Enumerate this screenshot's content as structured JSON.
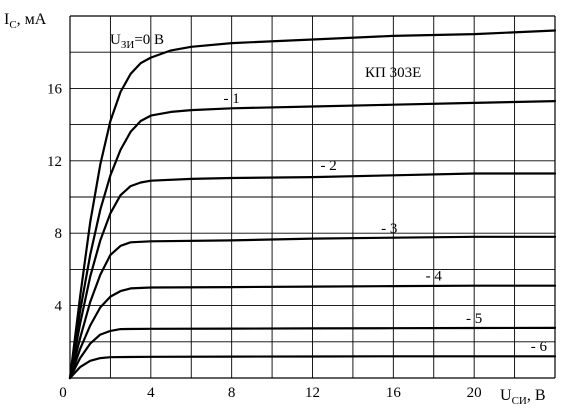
{
  "chart_data": {
    "type": "line",
    "title": "",
    "device_label": "КП 303Е",
    "ylabel": {
      "main": "I",
      "sub": "C",
      "unit": ", мА"
    },
    "xlabel": {
      "main": "U",
      "sub": "СИ",
      "unit": ", В"
    },
    "xlim": [
      0,
      24
    ],
    "ylim": [
      0,
      20
    ],
    "grid": true,
    "x_ticks": [
      0,
      4,
      8,
      12,
      16,
      20
    ],
    "y_ticks": [
      4,
      8,
      12,
      16
    ],
    "gate_label_prefix": {
      "main": "U",
      "sub": "ЗИ",
      "rest": "=0 В"
    },
    "series": [
      {
        "label": "",
        "points": [
          [
            0,
            0
          ],
          [
            0.5,
            4.5
          ],
          [
            1,
            8.6
          ],
          [
            1.5,
            11.8
          ],
          [
            2,
            14.2
          ],
          [
            2.5,
            15.8
          ],
          [
            3,
            16.8
          ],
          [
            3.5,
            17.4
          ],
          [
            4,
            17.7
          ],
          [
            5,
            18.1
          ],
          [
            6,
            18.3
          ],
          [
            8,
            18.5
          ],
          [
            12,
            18.7
          ],
          [
            16,
            18.9
          ],
          [
            20,
            19.0
          ],
          [
            24,
            19.2
          ]
        ]
      },
      {
        "label": "- 1",
        "points": [
          [
            0,
            0
          ],
          [
            0.5,
            3.7
          ],
          [
            1,
            6.8
          ],
          [
            1.5,
            9.3
          ],
          [
            2,
            11.2
          ],
          [
            2.5,
            12.6
          ],
          [
            3,
            13.6
          ],
          [
            3.5,
            14.2
          ],
          [
            4,
            14.5
          ],
          [
            5,
            14.7
          ],
          [
            6,
            14.8
          ],
          [
            8,
            14.9
          ],
          [
            12,
            15.0
          ],
          [
            16,
            15.1
          ],
          [
            20,
            15.2
          ],
          [
            24,
            15.3
          ]
        ]
      },
      {
        "label": "- 2",
        "points": [
          [
            0,
            0
          ],
          [
            0.5,
            3.0
          ],
          [
            1,
            5.6
          ],
          [
            1.5,
            7.6
          ],
          [
            2,
            9.1
          ],
          [
            2.5,
            10.1
          ],
          [
            3,
            10.6
          ],
          [
            3.5,
            10.8
          ],
          [
            4,
            10.9
          ],
          [
            6,
            11.0
          ],
          [
            8,
            11.05
          ],
          [
            12,
            11.1
          ],
          [
            16,
            11.2
          ],
          [
            20,
            11.3
          ],
          [
            24,
            11.3
          ]
        ]
      },
      {
        "label": "- 3",
        "points": [
          [
            0,
            0
          ],
          [
            0.5,
            2.2
          ],
          [
            1,
            4.2
          ],
          [
            1.5,
            5.7
          ],
          [
            2,
            6.8
          ],
          [
            2.5,
            7.3
          ],
          [
            3,
            7.5
          ],
          [
            4,
            7.55
          ],
          [
            8,
            7.6
          ],
          [
            12,
            7.7
          ],
          [
            16,
            7.75
          ],
          [
            20,
            7.8
          ],
          [
            24,
            7.8
          ]
        ]
      },
      {
        "label": "- 4",
        "points": [
          [
            0,
            0
          ],
          [
            0.5,
            1.6
          ],
          [
            1,
            2.9
          ],
          [
            1.5,
            3.9
          ],
          [
            2,
            4.5
          ],
          [
            2.5,
            4.8
          ],
          [
            3,
            4.95
          ],
          [
            4,
            5.0
          ],
          [
            8,
            5.02
          ],
          [
            12,
            5.05
          ],
          [
            16,
            5.08
          ],
          [
            20,
            5.1
          ],
          [
            24,
            5.1
          ]
        ]
      },
      {
        "label": "- 5",
        "points": [
          [
            0,
            0
          ],
          [
            0.5,
            1.1
          ],
          [
            1,
            1.9
          ],
          [
            1.5,
            2.4
          ],
          [
            2,
            2.6
          ],
          [
            2.5,
            2.7
          ],
          [
            4,
            2.72
          ],
          [
            8,
            2.73
          ],
          [
            12,
            2.74
          ],
          [
            16,
            2.75
          ],
          [
            20,
            2.76
          ],
          [
            24,
            2.77
          ]
        ]
      },
      {
        "label": "- 6",
        "points": [
          [
            0,
            0
          ],
          [
            0.5,
            0.6
          ],
          [
            1,
            0.95
          ],
          [
            1.5,
            1.1
          ],
          [
            2,
            1.15
          ],
          [
            4,
            1.17
          ],
          [
            8,
            1.18
          ],
          [
            12,
            1.19
          ],
          [
            16,
            1.2
          ],
          [
            20,
            1.2
          ],
          [
            24,
            1.2
          ]
        ]
      }
    ]
  }
}
